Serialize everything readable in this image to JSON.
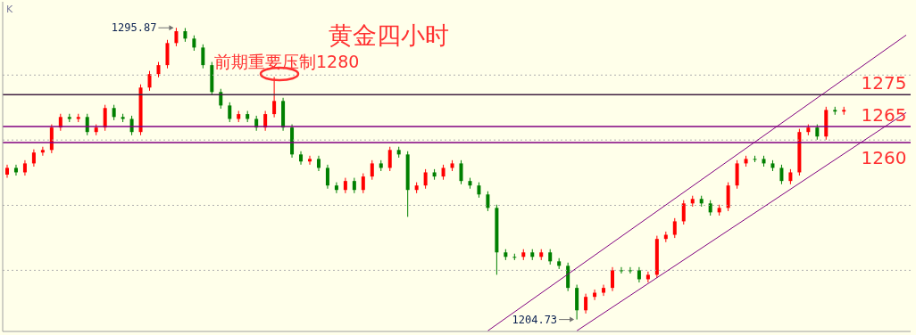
{
  "chart_data": {
    "type": "candlestick",
    "title": "黄金四小时",
    "categories": [
      null,
      null,
      null,
      null,
      null,
      null,
      null,
      null,
      null,
      null,
      null,
      null,
      null,
      null,
      null,
      null,
      null,
      null,
      null,
      null,
      null,
      null,
      null,
      null,
      null,
      null,
      null,
      null,
      null,
      null,
      null,
      null,
      null,
      null,
      null,
      null,
      null,
      null,
      null,
      null,
      null,
      null,
      null,
      null,
      null,
      null,
      null,
      null,
      null,
      null,
      null,
      null,
      null,
      null,
      null,
      null,
      null,
      null,
      null,
      null,
      null,
      null,
      null,
      null,
      null,
      null,
      null,
      null,
      null,
      null,
      null,
      null,
      null,
      null,
      null,
      null,
      null,
      null,
      null,
      null,
      null,
      null,
      null,
      null,
      null,
      null,
      null,
      null,
      null,
      null,
      null,
      null,
      null,
      null,
      null,
      null,
      null,
      null,
      null,
      null,
      null,
      null
    ],
    "ohlc": [
      [
        1250.0,
        1253.1,
        1249.0,
        1252.1
      ],
      [
        1252.1,
        1253.1,
        1249.7,
        1250.7
      ],
      [
        1250.7,
        1254.5,
        1249.7,
        1253.5
      ],
      [
        1253.5,
        1257.9,
        1252.5,
        1256.9
      ],
      [
        1256.9,
        1258.7,
        1255.9,
        1257.7
      ],
      [
        1257.7,
        1265.7,
        1256.7,
        1264.7
      ],
      [
        1264.7,
        1269.0,
        1263.7,
        1268.0
      ],
      [
        1268.0,
        1269.0,
        1266.4,
        1267.4
      ],
      [
        1267.4,
        1269.0,
        1266.4,
        1268.0
      ],
      [
        1268.0,
        1269.0,
        1262.3,
        1263.3
      ],
      [
        1263.3,
        1265.7,
        1262.3,
        1264.7
      ],
      [
        1264.7,
        1271.8,
        1263.7,
        1270.8
      ],
      [
        1270.8,
        1271.8,
        1267.0,
        1268.0
      ],
      [
        1268.0,
        1269.0,
        1266.4,
        1267.4
      ],
      [
        1267.4,
        1268.4,
        1262.3,
        1263.3
      ],
      [
        1263.3,
        1278.2,
        1262.3,
        1277.2
      ],
      [
        1277.2,
        1282.4,
        1276.2,
        1281.4
      ],
      [
        1281.4,
        1285.2,
        1280.4,
        1284.2
      ],
      [
        1284.2,
        1292.1,
        1283.2,
        1291.1
      ],
      [
        1291.1,
        1295.87,
        1290.1,
        1294.8
      ],
      [
        1294.8,
        1295.8,
        1291.5,
        1292.5
      ],
      [
        1292.5,
        1293.5,
        1288.7,
        1289.7
      ],
      [
        1289.7,
        1290.7,
        1283.2,
        1284.2
      ],
      [
        1284.2,
        1285.2,
        1274.8,
        1275.8
      ],
      [
        1275.8,
        1276.8,
        1270.6,
        1271.6
      ],
      [
        1271.6,
        1272.6,
        1266.4,
        1267.4
      ],
      [
        1267.4,
        1269.9,
        1266.4,
        1268.9
      ],
      [
        1268.9,
        1269.9,
        1266.4,
        1267.4
      ],
      [
        1267.4,
        1268.4,
        1263.7,
        1264.7
      ],
      [
        1264.7,
        1269.9,
        1263.7,
        1268.9
      ],
      [
        1268.9,
        1280.5,
        1267.9,
        1273.0
      ],
      [
        1273.0,
        1274.0,
        1263.7,
        1264.7
      ],
      [
        1264.7,
        1265.7,
        1255.3,
        1256.3
      ],
      [
        1256.3,
        1257.3,
        1253.1,
        1254.1
      ],
      [
        1254.1,
        1255.9,
        1253.1,
        1254.9
      ],
      [
        1254.9,
        1255.9,
        1251.1,
        1252.1
      ],
      [
        1252.1,
        1253.1,
        1245.6,
        1246.6
      ],
      [
        1246.6,
        1247.6,
        1244.2,
        1245.2
      ],
      [
        1245.2,
        1249.0,
        1244.2,
        1248.0
      ],
      [
        1248.0,
        1249.0,
        1244.2,
        1245.2
      ],
      [
        1245.2,
        1250.4,
        1244.2,
        1249.4
      ],
      [
        1249.4,
        1254.5,
        1248.4,
        1253.5
      ],
      [
        1253.5,
        1254.5,
        1251.1,
        1252.1
      ],
      [
        1252.1,
        1258.7,
        1251.1,
        1257.7
      ],
      [
        1257.7,
        1258.7,
        1255.3,
        1256.3
      ],
      [
        1256.3,
        1257.3,
        1236.8,
        1245.2
      ],
      [
        1245.2,
        1247.6,
        1244.2,
        1246.6
      ],
      [
        1246.6,
        1251.7,
        1245.6,
        1250.7
      ],
      [
        1250.7,
        1251.7,
        1248.4,
        1249.4
      ],
      [
        1249.4,
        1253.1,
        1248.4,
        1252.1
      ],
      [
        1252.1,
        1254.5,
        1251.1,
        1253.5
      ],
      [
        1253.5,
        1254.5,
        1247.0,
        1248.0
      ],
      [
        1248.0,
        1249.0,
        1245.6,
        1246.6
      ],
      [
        1246.6,
        1247.6,
        1242.8,
        1243.8
      ],
      [
        1243.8,
        1244.8,
        1238.6,
        1239.6
      ],
      [
        1239.6,
        1240.6,
        1218.7,
        1225.7
      ],
      [
        1225.7,
        1226.7,
        1223.3,
        1224.3
      ],
      [
        1224.3,
        1225.3,
        1223.3,
        1224.3
      ],
      [
        1224.3,
        1226.7,
        1223.3,
        1225.7
      ],
      [
        1225.7,
        1226.7,
        1223.3,
        1224.3
      ],
      [
        1224.3,
        1226.7,
        1223.3,
        1225.7
      ],
      [
        1225.7,
        1226.7,
        1221.9,
        1222.9
      ],
      [
        1222.9,
        1223.9,
        1220.5,
        1221.5
      ],
      [
        1221.5,
        1222.5,
        1213.6,
        1214.6
      ],
      [
        1214.6,
        1215.6,
        1204.73,
        1207.6
      ],
      [
        1207.6,
        1212.8,
        1206.6,
        1211.8
      ],
      [
        1211.8,
        1214.1,
        1210.8,
        1213.1
      ],
      [
        1213.1,
        1215.6,
        1212.1,
        1214.6
      ],
      [
        1214.6,
        1221.1,
        1213.6,
        1220.1
      ],
      [
        1220.1,
        1221.1,
        1219.1,
        1220.1
      ],
      [
        1220.1,
        1221.1,
        1219.1,
        1220.1
      ],
      [
        1220.1,
        1221.1,
        1216.3,
        1217.3
      ],
      [
        1217.3,
        1219.7,
        1216.3,
        1218.7
      ],
      [
        1218.7,
        1230.9,
        1217.7,
        1229.9
      ],
      [
        1229.9,
        1232.2,
        1228.9,
        1231.2
      ],
      [
        1231.2,
        1236.4,
        1230.2,
        1235.4
      ],
      [
        1235.4,
        1242.0,
        1234.4,
        1241.0
      ],
      [
        1241.0,
        1243.4,
        1240.0,
        1242.4
      ],
      [
        1242.4,
        1243.4,
        1240.0,
        1241.0
      ],
      [
        1241.0,
        1242.0,
        1237.2,
        1238.2
      ],
      [
        1238.2,
        1240.6,
        1237.2,
        1239.6
      ],
      [
        1239.6,
        1247.6,
        1238.6,
        1246.6
      ],
      [
        1246.6,
        1254.5,
        1245.6,
        1253.5
      ],
      [
        1253.5,
        1255.9,
        1252.5,
        1254.9
      ],
      [
        1254.9,
        1255.9,
        1253.9,
        1254.9
      ],
      [
        1254.9,
        1255.9,
        1252.5,
        1253.5
      ],
      [
        1253.5,
        1254.5,
        1251.1,
        1252.1
      ],
      [
        1252.1,
        1253.1,
        1247.0,
        1248.0
      ],
      [
        1248.0,
        1251.7,
        1247.0,
        1250.7
      ],
      [
        1250.7,
        1264.3,
        1249.7,
        1263.3
      ],
      [
        1263.3,
        1265.7,
        1262.3,
        1264.7
      ],
      [
        1264.7,
        1265.7,
        1260.9,
        1261.9
      ],
      [
        1261.9,
        1271.2,
        1260.9,
        1270.2
      ],
      [
        1270.2,
        1271.2,
        1268.7,
        1269.7
      ],
      [
        1269.7,
        1271.2,
        1268.7,
        1270.2
      ],
      null,
      null,
      null,
      null,
      null,
      null,
      null
    ],
    "colors": [
      "#ff0000",
      "#008000",
      "#ff0000",
      "#ff0000",
      "#ff0000",
      "#ff0000",
      "#ff0000",
      "#008000",
      "#ff0000",
      "#008000",
      "#ff0000",
      "#ff0000",
      "#008000",
      "#008000",
      "#008000",
      "#ff0000",
      "#ff0000",
      "#ff0000",
      "#ff0000",
      "#ff0000",
      "#008000",
      "#008000",
      "#008000",
      "#008000",
      "#008000",
      "#008000",
      "#ff0000",
      "#008000",
      "#008000",
      "#ff0000",
      "#ff0000",
      "#008000",
      "#008000",
      "#008000",
      "#ff0000",
      "#008000",
      "#008000",
      "#008000",
      "#ff0000",
      "#008000",
      "#ff0000",
      "#ff0000",
      "#008000",
      "#ff0000",
      "#008000",
      "#008000",
      "#ff0000",
      "#ff0000",
      "#008000",
      "#ff0000",
      "#ff0000",
      "#008000",
      "#008000",
      "#008000",
      "#008000",
      "#008000",
      "#008000",
      "#008000",
      "#ff0000",
      "#008000",
      "#ff0000",
      "#008000",
      "#008000",
      "#008000",
      "#008000",
      "#ff0000",
      "#ff0000",
      "#ff0000",
      "#ff0000",
      "#008000",
      "#008000",
      "#008000",
      "#ff0000",
      "#ff0000",
      "#ff0000",
      "#ff0000",
      "#ff0000",
      "#ff0000",
      "#008000",
      "#008000",
      "#ff0000",
      "#ff0000",
      "#ff0000",
      "#ff0000",
      "#008000",
      "#008000",
      "#008000",
      "#008000",
      "#ff0000",
      "#ff0000",
      "#ff0000",
      "#008000",
      "#ff0000",
      "#008000",
      "#ff0000",
      null,
      null,
      null,
      null,
      null,
      null,
      null
    ],
    "series": [
      {
        "type": "line",
        "color": "#800080",
        "values": [
          null,
          null,
          null,
          null,
          null,
          null,
          null,
          null,
          null,
          null,
          null,
          null,
          null,
          null,
          null,
          null,
          null,
          null,
          null,
          null,
          null,
          null,
          null,
          null,
          null,
          null,
          null,
          null,
          null,
          null,
          null,
          null,
          null,
          null,
          null,
          null,
          null,
          null,
          null,
          null,
          null,
          null,
          null,
          null,
          null,
          null,
          null,
          null,
          null,
          null,
          null,
          null,
          null,
          null,
          1201.2,
          null,
          null,
          null,
          null,
          null,
          null,
          null,
          null,
          null,
          null,
          null,
          null,
          null,
          null,
          null,
          null,
          null,
          null,
          null,
          null,
          null,
          null,
          null,
          null,
          null,
          null,
          null,
          null,
          null,
          null,
          null,
          null,
          null,
          null,
          null,
          null,
          null,
          null,
          null,
          null,
          null,
          null,
          null,
          null,
          null,
          null,
          1293.6
        ]
      },
      {
        "type": "line",
        "color": "#800080",
        "values": [
          null,
          null,
          null,
          null,
          null,
          null,
          null,
          null,
          null,
          null,
          null,
          null,
          null,
          null,
          null,
          null,
          null,
          null,
          null,
          null,
          null,
          null,
          null,
          null,
          null,
          null,
          null,
          null,
          null,
          null,
          null,
          null,
          null,
          null,
          null,
          null,
          null,
          null,
          null,
          null,
          null,
          null,
          null,
          null,
          null,
          null,
          null,
          null,
          null,
          null,
          null,
          null,
          null,
          null,
          null,
          null,
          null,
          null,
          null,
          null,
          null,
          null,
          null,
          null,
          1201.2,
          null,
          null,
          null,
          null,
          null,
          null,
          null,
          null,
          null,
          null,
          null,
          null,
          null,
          null,
          null,
          null,
          null,
          null,
          null,
          null,
          null,
          null,
          null,
          null,
          null,
          null,
          null,
          null,
          null,
          null,
          null,
          null,
          null,
          null,
          null,
          null,
          1269.4
        ]
      }
    ],
    "ylim": [
      1201,
      1304
    ],
    "yticks": [
      {
        "value": 1281.1,
        "label": null
      },
      {
        "value": 1260.8,
        "label": null
      },
      {
        "value": 1240.4,
        "label": null
      },
      {
        "value": 1220.1,
        "label": null
      }
    ],
    "grid": "y",
    "line_style": "solid",
    "ref_lines": [
      {
        "axis": "y",
        "value": 1275,
        "label": "1275",
        "color": "#402040"
      },
      {
        "axis": "y",
        "value": 1265,
        "label": "1265",
        "color": "#800080"
      },
      {
        "axis": "y",
        "value": 1260,
        "label": "1260",
        "color": "#800080"
      }
    ],
    "annotations": [
      "K",
      "前期重要压制1280",
      "1295.87",
      "1204.73"
    ]
  }
}
